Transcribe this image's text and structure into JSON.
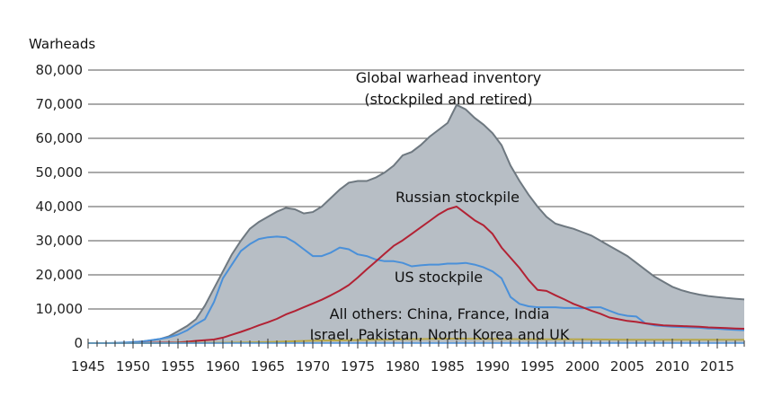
{
  "chart_data": {
    "type": "area",
    "ylabel": "Warheads",
    "xlim": [
      1945,
      2018
    ],
    "ylim": [
      0,
      80000
    ],
    "grid": true,
    "x_ticks": [
      1945,
      1950,
      1955,
      1960,
      1965,
      1970,
      1975,
      1980,
      1985,
      1990,
      1995,
      2000,
      2005,
      2010,
      2015
    ],
    "y_ticks": [
      {
        "value": 0,
        "label": "0"
      },
      {
        "value": 10000,
        "label": "10,000"
      },
      {
        "value": 20000,
        "label": "20,000"
      },
      {
        "value": 30000,
        "label": "30,000"
      },
      {
        "value": 40000,
        "label": "40,000"
      },
      {
        "value": 50000,
        "label": "50,000"
      },
      {
        "value": 60000,
        "label": "60,000"
      },
      {
        "value": 70000,
        "label": "70,000"
      },
      {
        "value": 80000,
        "label": "80,000"
      }
    ],
    "annotations": {
      "global_line1": "Global warhead inventory",
      "global_line2": "(stockpiled and retired)",
      "russia": "Russian stockpile",
      "us": "US stockpile",
      "others_line1": "All others: China, France, India",
      "others_line2": "Israel, Pakistan, North Korea and UK"
    },
    "series": [
      {
        "name": "Global warhead inventory",
        "style": "area",
        "fill": "#b7bec5",
        "stroke": "#6e7880",
        "points": [
          [
            1945,
            0
          ],
          [
            1946,
            0
          ],
          [
            1947,
            0
          ],
          [
            1948,
            0
          ],
          [
            1949,
            0
          ],
          [
            1950,
            300
          ],
          [
            1951,
            500
          ],
          [
            1952,
            800
          ],
          [
            1953,
            1200
          ],
          [
            1954,
            2000
          ],
          [
            1955,
            3500
          ],
          [
            1956,
            5000
          ],
          [
            1957,
            7000
          ],
          [
            1958,
            11000
          ],
          [
            1959,
            16000
          ],
          [
            1960,
            21000
          ],
          [
            1961,
            26000
          ],
          [
            1962,
            30000
          ],
          [
            1963,
            33500
          ],
          [
            1964,
            35500
          ],
          [
            1965,
            37000
          ],
          [
            1966,
            38500
          ],
          [
            1967,
            39600
          ],
          [
            1968,
            39200
          ],
          [
            1969,
            38000
          ],
          [
            1970,
            38400
          ],
          [
            1971,
            40000
          ],
          [
            1972,
            42500
          ],
          [
            1973,
            45000
          ],
          [
            1974,
            47000
          ],
          [
            1975,
            47500
          ],
          [
            1976,
            47500
          ],
          [
            1977,
            48500
          ],
          [
            1978,
            50000
          ],
          [
            1979,
            52000
          ],
          [
            1980,
            55000
          ],
          [
            1981,
            56000
          ],
          [
            1982,
            58000
          ],
          [
            1983,
            60500
          ],
          [
            1984,
            62500
          ],
          [
            1985,
            64500
          ],
          [
            1986,
            69800
          ],
          [
            1987,
            68500
          ],
          [
            1988,
            66000
          ],
          [
            1989,
            64000
          ],
          [
            1990,
            61500
          ],
          [
            1991,
            58000
          ],
          [
            1992,
            52000
          ],
          [
            1993,
            47500
          ],
          [
            1994,
            43500
          ],
          [
            1995,
            40000
          ],
          [
            1996,
            37000
          ],
          [
            1997,
            35000
          ],
          [
            1998,
            34200
          ],
          [
            1999,
            33500
          ],
          [
            2000,
            32500
          ],
          [
            2001,
            31500
          ],
          [
            2002,
            30000
          ],
          [
            2003,
            28500
          ],
          [
            2004,
            27000
          ],
          [
            2005,
            25500
          ],
          [
            2006,
            23500
          ],
          [
            2007,
            21500
          ],
          [
            2008,
            19500
          ],
          [
            2009,
            18000
          ],
          [
            2010,
            16500
          ],
          [
            2011,
            15500
          ],
          [
            2012,
            14800
          ],
          [
            2013,
            14200
          ],
          [
            2014,
            13800
          ],
          [
            2015,
            13500
          ],
          [
            2016,
            13200
          ],
          [
            2017,
            13000
          ],
          [
            2018,
            12800
          ]
        ]
      },
      {
        "name": "US stockpile",
        "style": "line",
        "stroke": "#4a90d9",
        "points": [
          [
            1945,
            0
          ],
          [
            1946,
            9
          ],
          [
            1947,
            13
          ],
          [
            1948,
            50
          ],
          [
            1949,
            170
          ],
          [
            1950,
            300
          ],
          [
            1951,
            440
          ],
          [
            1952,
            840
          ],
          [
            1953,
            1200
          ],
          [
            1954,
            1700
          ],
          [
            1955,
            2500
          ],
          [
            1956,
            3700
          ],
          [
            1957,
            5500
          ],
          [
            1958,
            7000
          ],
          [
            1959,
            12000
          ],
          [
            1960,
            19000
          ],
          [
            1961,
            23000
          ],
          [
            1962,
            27000
          ],
          [
            1963,
            29000
          ],
          [
            1964,
            30500
          ],
          [
            1965,
            31000
          ],
          [
            1966,
            31200
          ],
          [
            1967,
            31000
          ],
          [
            1968,
            29500
          ],
          [
            1969,
            27500
          ],
          [
            1970,
            25500
          ],
          [
            1971,
            25500
          ],
          [
            1972,
            26500
          ],
          [
            1973,
            28000
          ],
          [
            1974,
            27500
          ],
          [
            1975,
            26000
          ],
          [
            1976,
            25500
          ],
          [
            1977,
            24500
          ],
          [
            1978,
            24000
          ],
          [
            1979,
            24000
          ],
          [
            1980,
            23500
          ],
          [
            1981,
            22500
          ],
          [
            1982,
            22800
          ],
          [
            1983,
            23000
          ],
          [
            1984,
            23000
          ],
          [
            1985,
            23300
          ],
          [
            1986,
            23300
          ],
          [
            1987,
            23500
          ],
          [
            1988,
            23000
          ],
          [
            1989,
            22200
          ],
          [
            1990,
            21000
          ],
          [
            1991,
            19000
          ],
          [
            1992,
            13500
          ],
          [
            1993,
            11500
          ],
          [
            1994,
            10800
          ],
          [
            1995,
            10500
          ],
          [
            1996,
            10500
          ],
          [
            1997,
            10500
          ],
          [
            1998,
            10300
          ],
          [
            1999,
            10300
          ],
          [
            2000,
            10200
          ],
          [
            2001,
            10500
          ],
          [
            2002,
            10500
          ],
          [
            2003,
            9500
          ],
          [
            2004,
            8500
          ],
          [
            2005,
            8000
          ],
          [
            2006,
            7800
          ],
          [
            2007,
            5800
          ],
          [
            2008,
            5200
          ],
          [
            2009,
            5000
          ],
          [
            2010,
            4800
          ],
          [
            2011,
            4700
          ],
          [
            2012,
            4600
          ],
          [
            2013,
            4500
          ],
          [
            2014,
            4300
          ],
          [
            2015,
            4200
          ],
          [
            2016,
            4000
          ],
          [
            2017,
            3900
          ],
          [
            2018,
            3800
          ]
        ]
      },
      {
        "name": "Russian stockpile",
        "style": "line",
        "stroke": "#b22234",
        "points": [
          [
            1945,
            0
          ],
          [
            1948,
            0
          ],
          [
            1949,
            1
          ],
          [
            1950,
            5
          ],
          [
            1951,
            25
          ],
          [
            1952,
            50
          ],
          [
            1953,
            120
          ],
          [
            1954,
            150
          ],
          [
            1955,
            200
          ],
          [
            1956,
            400
          ],
          [
            1957,
            650
          ],
          [
            1958,
            870
          ],
          [
            1959,
            1050
          ],
          [
            1960,
            1600
          ],
          [
            1961,
            2450
          ],
          [
            1962,
            3300
          ],
          [
            1963,
            4200
          ],
          [
            1964,
            5200
          ],
          [
            1965,
            6100
          ],
          [
            1966,
            7100
          ],
          [
            1967,
            8400
          ],
          [
            1968,
            9400
          ],
          [
            1969,
            10500
          ],
          [
            1970,
            11600
          ],
          [
            1971,
            12700
          ],
          [
            1972,
            14000
          ],
          [
            1973,
            15400
          ],
          [
            1974,
            17000
          ],
          [
            1975,
            19200
          ],
          [
            1976,
            21600
          ],
          [
            1977,
            23900
          ],
          [
            1978,
            26200
          ],
          [
            1979,
            28500
          ],
          [
            1980,
            30100
          ],
          [
            1981,
            32000
          ],
          [
            1982,
            33900
          ],
          [
            1983,
            35800
          ],
          [
            1984,
            37700
          ],
          [
            1985,
            39200
          ],
          [
            1986,
            40000
          ],
          [
            1987,
            38000
          ],
          [
            1988,
            36000
          ],
          [
            1989,
            34500
          ],
          [
            1990,
            32000
          ],
          [
            1991,
            28000
          ],
          [
            1992,
            25000
          ],
          [
            1993,
            22000
          ],
          [
            1994,
            18500
          ],
          [
            1995,
            15600
          ],
          [
            1996,
            15300
          ],
          [
            1997,
            14000
          ],
          [
            1998,
            12800
          ],
          [
            1999,
            11500
          ],
          [
            2000,
            10500
          ],
          [
            2001,
            9500
          ],
          [
            2002,
            8600
          ],
          [
            2003,
            7500
          ],
          [
            2004,
            7000
          ],
          [
            2005,
            6500
          ],
          [
            2006,
            6200
          ],
          [
            2007,
            5800
          ],
          [
            2008,
            5500
          ],
          [
            2009,
            5200
          ],
          [
            2010,
            5100
          ],
          [
            2011,
            5000
          ],
          [
            2012,
            4900
          ],
          [
            2013,
            4800
          ],
          [
            2014,
            4600
          ],
          [
            2015,
            4500
          ],
          [
            2016,
            4400
          ],
          [
            2017,
            4300
          ],
          [
            2018,
            4200
          ]
        ]
      },
      {
        "name": "All others",
        "style": "line",
        "stroke": "#b8a84a",
        "points": [
          [
            1945,
            0
          ],
          [
            1952,
            0
          ],
          [
            1953,
            10
          ],
          [
            1955,
            50
          ],
          [
            1960,
            100
          ],
          [
            1965,
            300
          ],
          [
            1970,
            700
          ],
          [
            1975,
            900
          ],
          [
            1980,
            1100
          ],
          [
            1985,
            1300
          ],
          [
            1990,
            1200
          ],
          [
            1995,
            1100
          ],
          [
            2000,
            1100
          ],
          [
            2005,
            1000
          ],
          [
            2010,
            1000
          ],
          [
            2015,
            1000
          ],
          [
            2018,
            1000
          ]
        ]
      }
    ]
  }
}
